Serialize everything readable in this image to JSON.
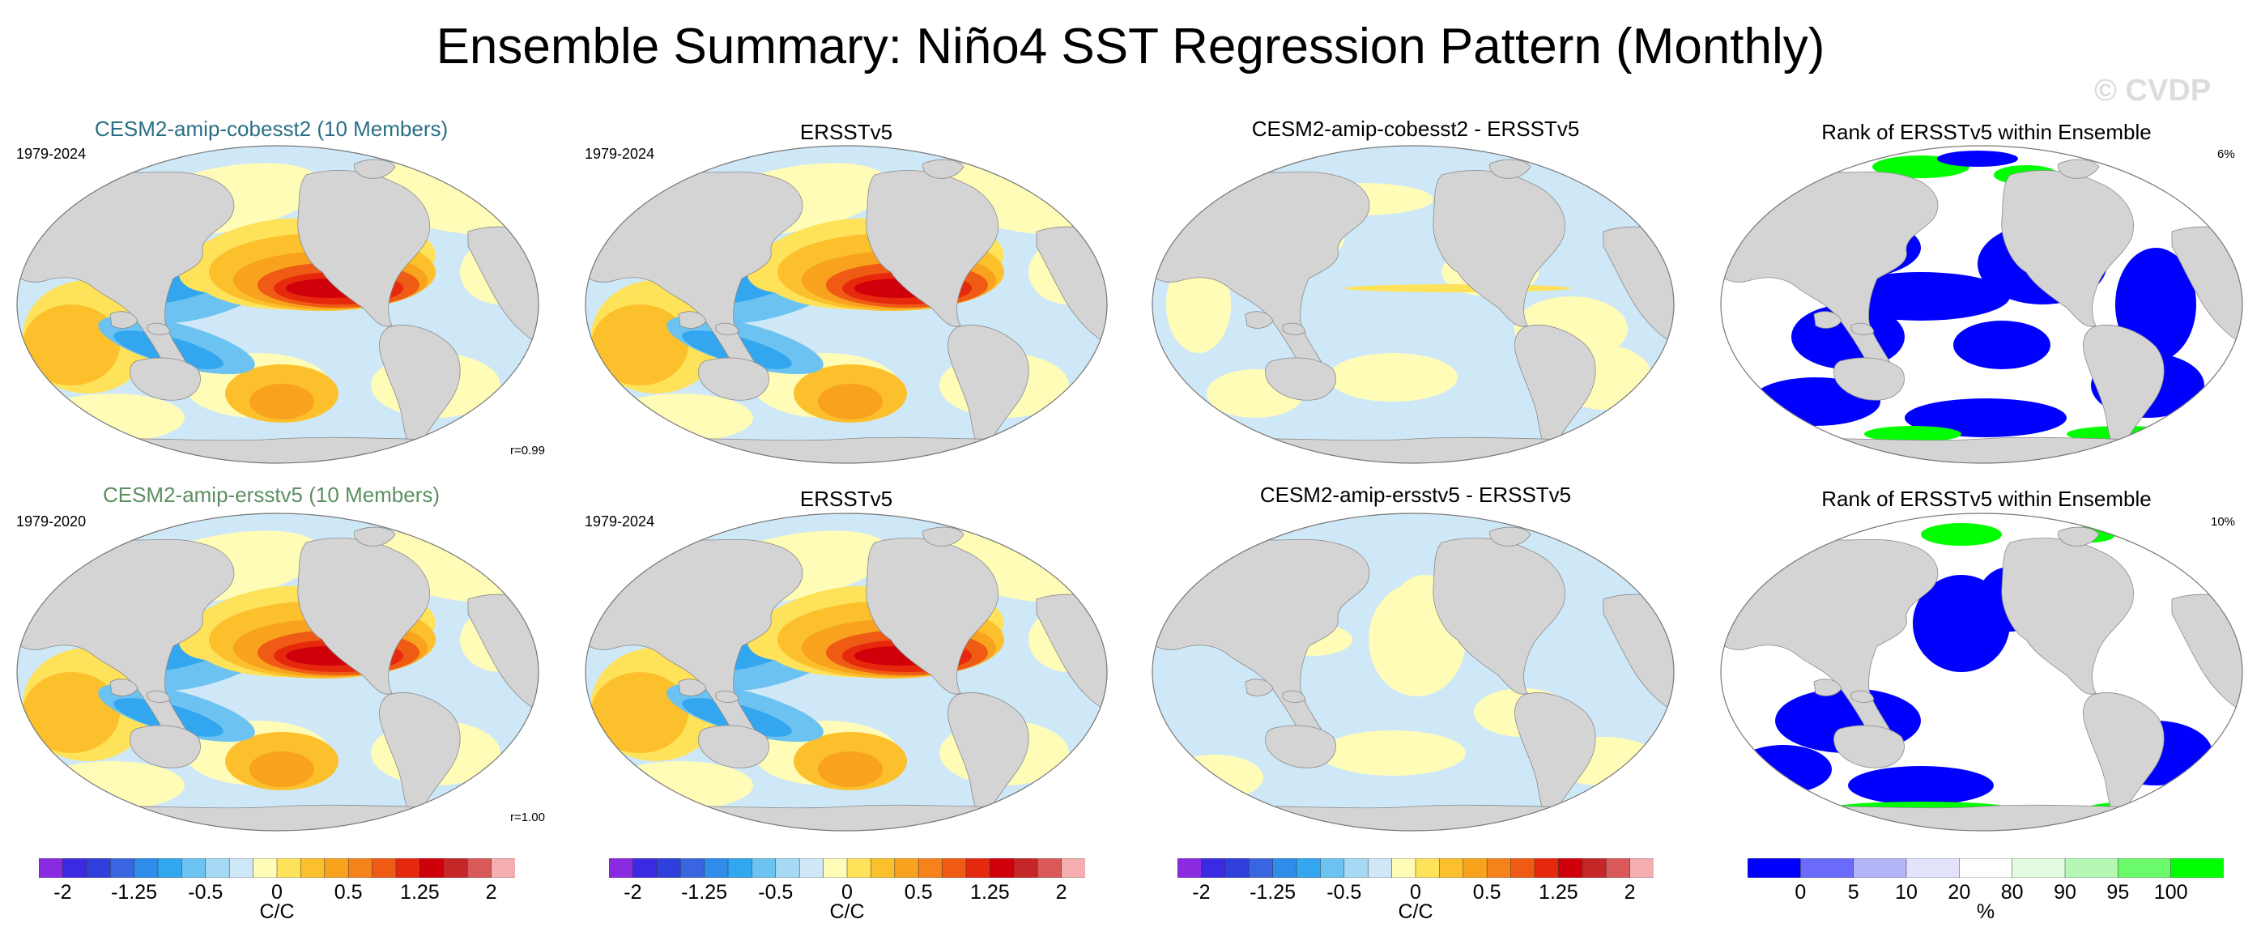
{
  "title": "Ensemble Summary: Niño4 SST Regression Pattern (Monthly)",
  "watermark": "© CVDP",
  "rows": [
    {
      "panels": [
        {
          "title": "CESM2-amip-cobesst2 (10 Members)",
          "period": "1979-2024",
          "stat": "r=0.99",
          "kind": "regression"
        },
        {
          "title": "ERSSTv5",
          "period": "1979-2024",
          "stat": "",
          "kind": "regression"
        },
        {
          "title": "CESM2-amip-cobesst2 - ERSSTv5",
          "period": "",
          "stat": "",
          "kind": "difference"
        },
        {
          "title": "Rank of ERSSTv5 within Ensemble",
          "period": "",
          "stat": "6%",
          "kind": "rank"
        }
      ]
    },
    {
      "panels": [
        {
          "title": "CESM2-amip-ersstv5 (10 Members)",
          "period": "1979-2020",
          "stat": "r=1.00",
          "kind": "regression"
        },
        {
          "title": "ERSSTv5",
          "period": "1979-2024",
          "stat": "",
          "kind": "regression"
        },
        {
          "title": "CESM2-amip-ersstv5 - ERSSTv5",
          "period": "",
          "stat": "",
          "kind": "difference"
        },
        {
          "title": "Rank of ERSSTv5 within Ensemble",
          "period": "",
          "stat": "10%",
          "kind": "rank"
        }
      ]
    }
  ],
  "colorbars": [
    {
      "label": "C/C",
      "ticks": [
        "-2",
        "-1.25",
        "-0.5",
        "0",
        "0.5",
        "1.25",
        "2"
      ]
    },
    {
      "label": "C/C",
      "ticks": [
        "-2",
        "-1.25",
        "-0.5",
        "0",
        "0.5",
        "1.25",
        "2"
      ]
    },
    {
      "label": "C/C",
      "ticks": [
        "-2",
        "-1.25",
        "-0.5",
        "0",
        "0.5",
        "1.25",
        "2"
      ]
    },
    {
      "label": "%",
      "ticks": [
        "0",
        "5",
        "10",
        "20",
        "80",
        "90",
        "95",
        "100"
      ]
    }
  ],
  "colors": {
    "land": "#d4d4d4",
    "sst_palette": [
      "#8a2be2",
      "#3a2be2",
      "#2f3fdc",
      "#3a65e0",
      "#2f8ce8",
      "#33a6f0",
      "#6cc2f0",
      "#a6d9f4",
      "#cfe8f7",
      "#fffcb8",
      "#fde25a",
      "#fcc02c",
      "#f8a21e",
      "#f5821a",
      "#ef5a14",
      "#e6280c",
      "#d0000a",
      "#c52628",
      "#d95858",
      "#f4aeb0"
    ],
    "rank_palette": [
      "#0000ff",
      "#6a6afb",
      "#b4b4f8",
      "#e2e2fb",
      "#ffffff",
      "#e2fbe2",
      "#b4f8b4",
      "#6afa6a",
      "#00ff00"
    ]
  }
}
